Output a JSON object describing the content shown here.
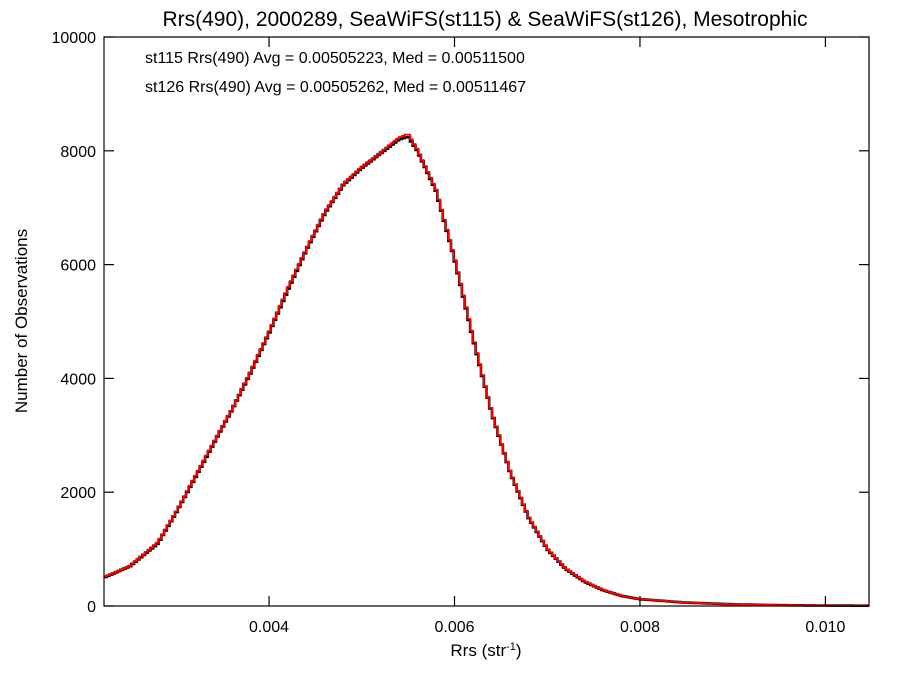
{
  "chart_data": {
    "type": "line",
    "step": true,
    "title": "Rrs(490), 2000289, SeaWiFS(st115) & SeaWiFS(st126), Mesotrophic",
    "xlabel": "Rrs (str",
    "xlabel_sup": "-1",
    "xlabel_end": ")",
    "ylabel": "Number of Observations",
    "xlim": [
      0.00222,
      0.01047
    ],
    "ylim": [
      0,
      10000
    ],
    "x_ticks": [
      0.004,
      0.006,
      0.008,
      0.01
    ],
    "x_tick_labels": [
      "0.004",
      "0.006",
      "0.008",
      "0.010"
    ],
    "y_ticks": [
      0,
      2000,
      4000,
      6000,
      8000,
      10000
    ],
    "y_tick_labels": [
      "0",
      "2000",
      "4000",
      "6000",
      "8000",
      "10000"
    ],
    "grid": false,
    "annotations": [
      {
        "text": "st115 Rrs(490) Avg = 0.00505223, Med = 0.00511500",
        "color": "#000000"
      },
      {
        "text": "st126 Rrs(490) Avg = 0.00505262, Med = 0.00511467",
        "color": "#ff0000"
      }
    ],
    "series": [
      {
        "color": "#000000",
        "x": [
          0.00222,
          0.0025,
          0.0028,
          0.003,
          0.0032,
          0.0034,
          0.0036,
          0.0038,
          0.004,
          0.0042,
          0.0044,
          0.0046,
          0.0048,
          0.005,
          0.0052,
          0.0054,
          0.0055,
          0.0056,
          0.0058,
          0.006,
          0.0062,
          0.0064,
          0.0066,
          0.0068,
          0.007,
          0.0072,
          0.0074,
          0.0076,
          0.0078,
          0.008,
          0.0085,
          0.009,
          0.0095,
          0.01,
          0.01047
        ],
        "y": [
          500,
          700,
          1100,
          1650,
          2250,
          2850,
          3450,
          4100,
          4800,
          5550,
          6250,
          6900,
          7400,
          7700,
          7950,
          8200,
          8250,
          8000,
          7300,
          6100,
          4700,
          3400,
          2350,
          1550,
          1000,
          650,
          430,
          280,
          180,
          120,
          60,
          30,
          15,
          8,
          5
        ]
      },
      {
        "color": "#ff0000",
        "x": [
          0.00222,
          0.0025,
          0.0028,
          0.003,
          0.0032,
          0.0034,
          0.0036,
          0.0038,
          0.004,
          0.0042,
          0.0044,
          0.0046,
          0.0048,
          0.005,
          0.0052,
          0.0054,
          0.0055,
          0.0056,
          0.0058,
          0.006,
          0.0062,
          0.0064,
          0.0066,
          0.0068,
          0.007,
          0.0072,
          0.0074,
          0.0076,
          0.0078,
          0.008,
          0.0085,
          0.009,
          0.0095,
          0.01,
          0.01047
        ],
        "y": [
          510,
          710,
          1120,
          1660,
          2270,
          2870,
          3460,
          4120,
          4820,
          5580,
          6270,
          6920,
          7420,
          7720,
          7970,
          8230,
          8300,
          8020,
          7320,
          6120,
          4720,
          3410,
          2360,
          1560,
          1010,
          660,
          440,
          285,
          185,
          125,
          62,
          31,
          16,
          9,
          6
        ]
      }
    ]
  }
}
